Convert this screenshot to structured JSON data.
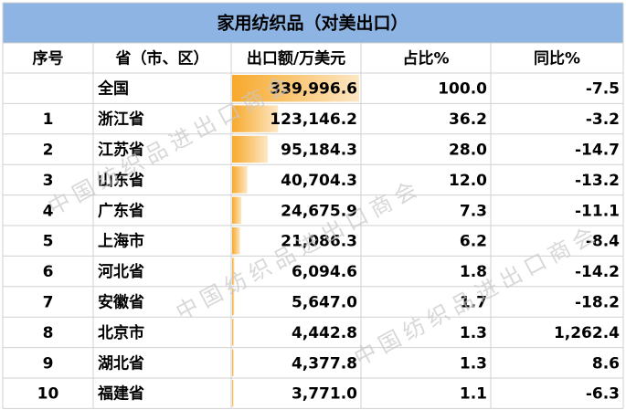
{
  "table": {
    "title": "家用纺织品（对美出口）",
    "watermark": "中国纺织品进出口商会",
    "header": [
      "序号",
      "省（市、区）",
      "出口额/万美元",
      "占比%",
      "同比%"
    ],
    "rows": [
      {
        "province": "全国",
        "export": {
          "value": 339996.6,
          "label": "339,996.6"
        },
        "share": "100.0",
        "yoy": "-7.5"
      },
      {
        "rank": "1",
        "province": "浙江省",
        "export": {
          "value": 123146.2,
          "label": "123,146.2"
        },
        "share": "36.2",
        "yoy": "-3.2"
      },
      {
        "rank": "2",
        "province": "江苏省",
        "export": {
          "value": 95184.3,
          "label": "95,184.3"
        },
        "share": "28.0",
        "yoy": "-14.7"
      },
      {
        "rank": "3",
        "province": "山东省",
        "export": {
          "value": 40704.3,
          "label": "40,704.3"
        },
        "share": "12.0",
        "yoy": "-13.2"
      },
      {
        "rank": "4",
        "province": "广东省",
        "export": {
          "value": 24675.9,
          "label": "24,675.9"
        },
        "share": "7.3",
        "yoy": "-11.1"
      },
      {
        "rank": "5",
        "province": "上海市",
        "export": {
          "value": 21086.3,
          "label": "21,086.3"
        },
        "share": "6.2",
        "yoy": "-8.4"
      },
      {
        "rank": "6",
        "province": "河北省",
        "export": {
          "value": 6094.6,
          "label": "6,094.6"
        },
        "share": "1.8",
        "yoy": "-14.2"
      },
      {
        "rank": "7",
        "province": "安徽省",
        "export": {
          "value": 5647.0,
          "label": "5,647.0"
        },
        "share": "1.7",
        "yoy": "-18.2"
      },
      {
        "rank": "8",
        "province": "北京市",
        "export": {
          "value": 4442.8,
          "label": "4,442.8"
        },
        "share": "1.3",
        "yoy": "1,262.4"
      },
      {
        "rank": "9",
        "province": "湖北省",
        "export": {
          "value": 4377.8,
          "label": "4,377.8"
        },
        "share": "1.3",
        "yoy": "8.6"
      },
      {
        "rank": "10",
        "province": "福建省",
        "export": {
          "value": 3771.0,
          "label": "3,771.0"
        },
        "share": "1.1",
        "yoy": "-6.3"
      }
    ]
  }
}
